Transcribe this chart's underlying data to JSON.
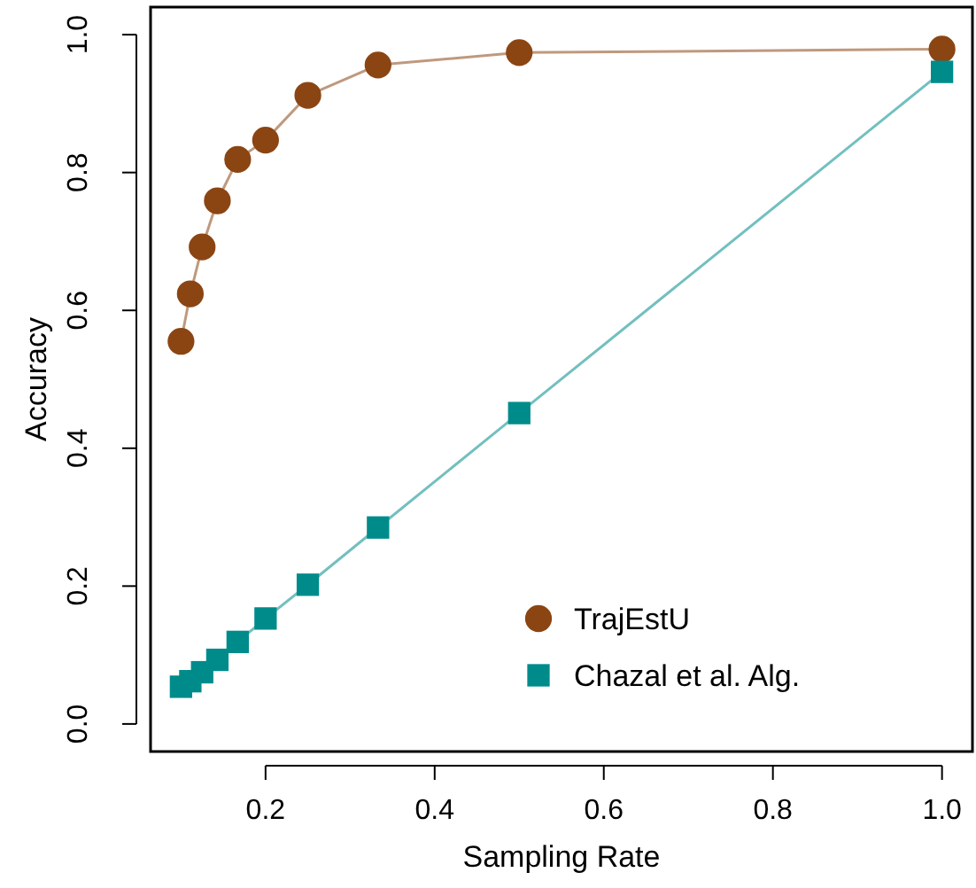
{
  "chart_data": {
    "type": "line",
    "xlabel": "Sampling Rate",
    "ylabel": "Accuracy",
    "x": [
      0.1,
      0.111,
      0.125,
      0.143,
      0.167,
      0.2,
      0.25,
      0.333,
      0.5,
      1.0
    ],
    "series": [
      {
        "name": "TrajEstU",
        "color": "#8b4513",
        "marker": "circle",
        "values": [
          0.555,
          0.624,
          0.692,
          0.759,
          0.819,
          0.847,
          0.912,
          0.956,
          0.974,
          0.979
        ]
      },
      {
        "name": "Chazal et al. Alg.",
        "color": "#008b8b",
        "marker": "square",
        "values": [
          0.054,
          0.062,
          0.075,
          0.093,
          0.119,
          0.153,
          0.202,
          0.285,
          0.451,
          0.946
        ]
      }
    ],
    "xlim": [
      0.064,
      1.036
    ],
    "xticks": [
      0.2,
      0.4,
      0.6,
      0.8,
      {
        "value": 1,
        "label": "1.0"
      }
    ],
    "ylim": [
      -0.04,
      1.04
    ],
    "yticks": [
      {
        "value": 0,
        "label": "0.0"
      },
      0.2,
      0.4,
      0.6,
      0.8,
      {
        "value": 1,
        "label": "1.0"
      }
    ],
    "tick_labels": true,
    "legend": "bottom right",
    "grid": false
  }
}
